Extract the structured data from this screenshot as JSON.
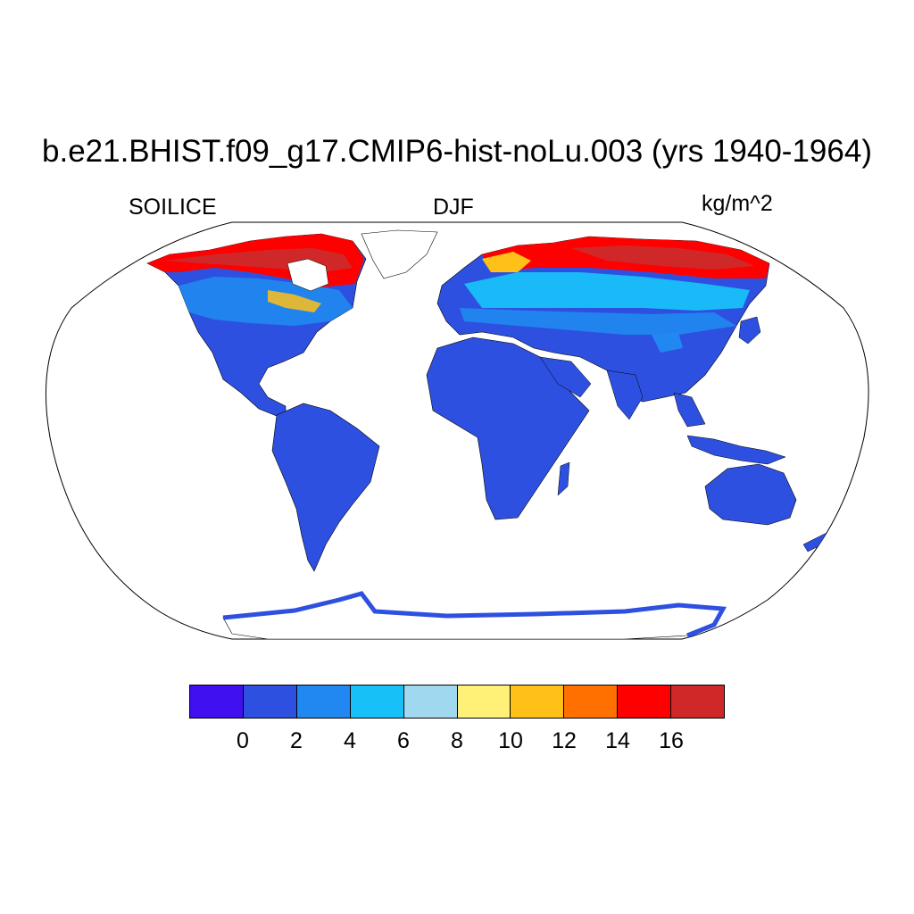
{
  "title": "b.e21.BHIST.f09_g17.CMIP6-hist-noLu.003 (yrs 1940-1964)",
  "variable": "SOILICE",
  "season": "DJF",
  "units": "kg/m^2",
  "map": {
    "projection": "Robinson",
    "ocean_color": "#ffffff",
    "coastline_color": "#000000"
  },
  "colorbar": {
    "colors": [
      "#4010f0",
      "#2e50e0",
      "#2088f0",
      "#18c0f8",
      "#a0d8f0",
      "#fff078",
      "#ffc018",
      "#ff7000",
      "#ff0000",
      "#d02828"
    ],
    "tick_labels": [
      "0",
      "2",
      "4",
      "6",
      "8",
      "10",
      "12",
      "14",
      "16"
    ]
  }
}
